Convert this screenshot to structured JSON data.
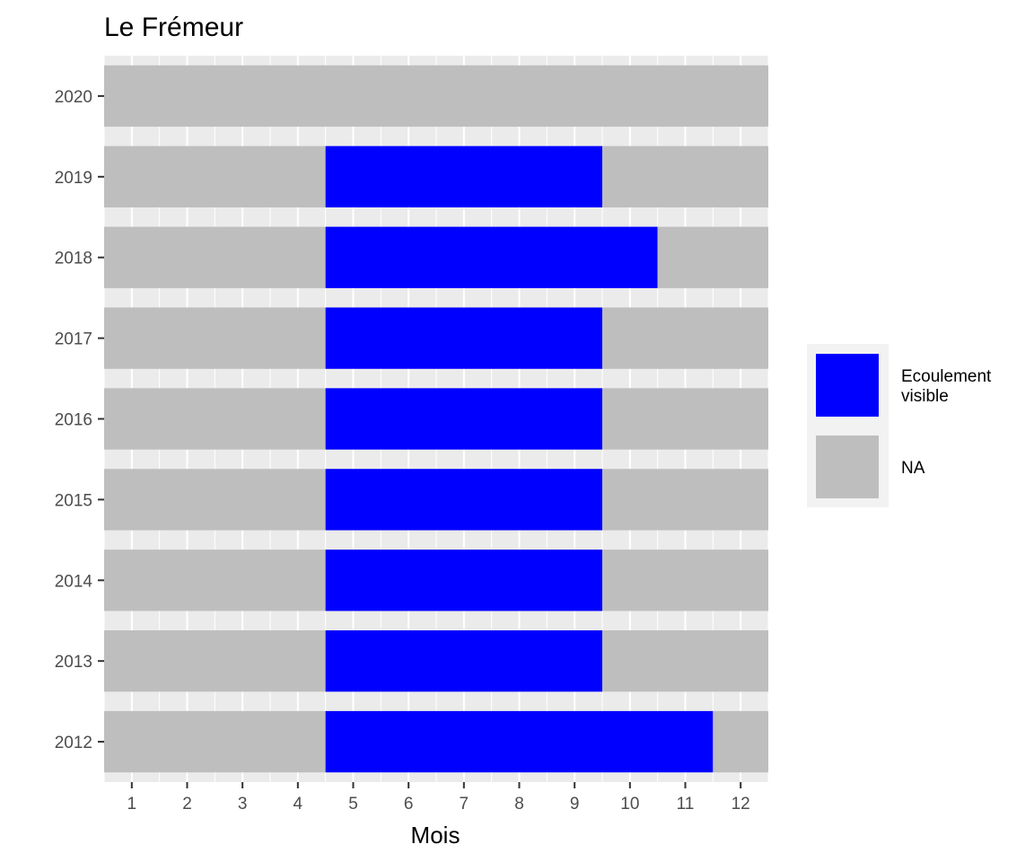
{
  "chart_data": {
    "type": "heatmap",
    "title": "Le Frémeur",
    "xlabel": "Mois",
    "ylabel": "",
    "x": [
      1,
      2,
      3,
      4,
      5,
      6,
      7,
      8,
      9,
      10,
      11,
      12
    ],
    "xlim": [
      0.5,
      12.5
    ],
    "y": [
      "2012",
      "2013",
      "2014",
      "2015",
      "2016",
      "2017",
      "2018",
      "2019",
      "2020"
    ],
    "grid": true,
    "legend_position": "right",
    "colors": {
      "panel_background": "#ebebeb",
      "grid": "#ffffff",
      "tick": "#333333"
    },
    "legend": [
      {
        "label": "Ecoulement\nvisible",
        "color": "#0000ff"
      },
      {
        "label": "NA",
        "color": "#bebebe"
      }
    ],
    "series": [
      {
        "year": "2012",
        "visible_months": [
          5,
          6,
          7,
          8,
          9,
          10,
          11
        ]
      },
      {
        "year": "2013",
        "visible_months": [
          5,
          6,
          7,
          8,
          9
        ]
      },
      {
        "year": "2014",
        "visible_months": [
          5,
          6,
          7,
          8,
          9
        ]
      },
      {
        "year": "2015",
        "visible_months": [
          5,
          6,
          7,
          8,
          9
        ]
      },
      {
        "year": "2016",
        "visible_months": [
          5,
          6,
          7,
          8,
          9
        ]
      },
      {
        "year": "2017",
        "visible_months": [
          5,
          6,
          7,
          8,
          9
        ]
      },
      {
        "year": "2018",
        "visible_months": [
          5,
          6,
          7,
          8,
          9,
          10
        ]
      },
      {
        "year": "2019",
        "visible_months": [
          5,
          6,
          7,
          8,
          9
        ]
      },
      {
        "year": "2020",
        "visible_months": []
      }
    ]
  }
}
